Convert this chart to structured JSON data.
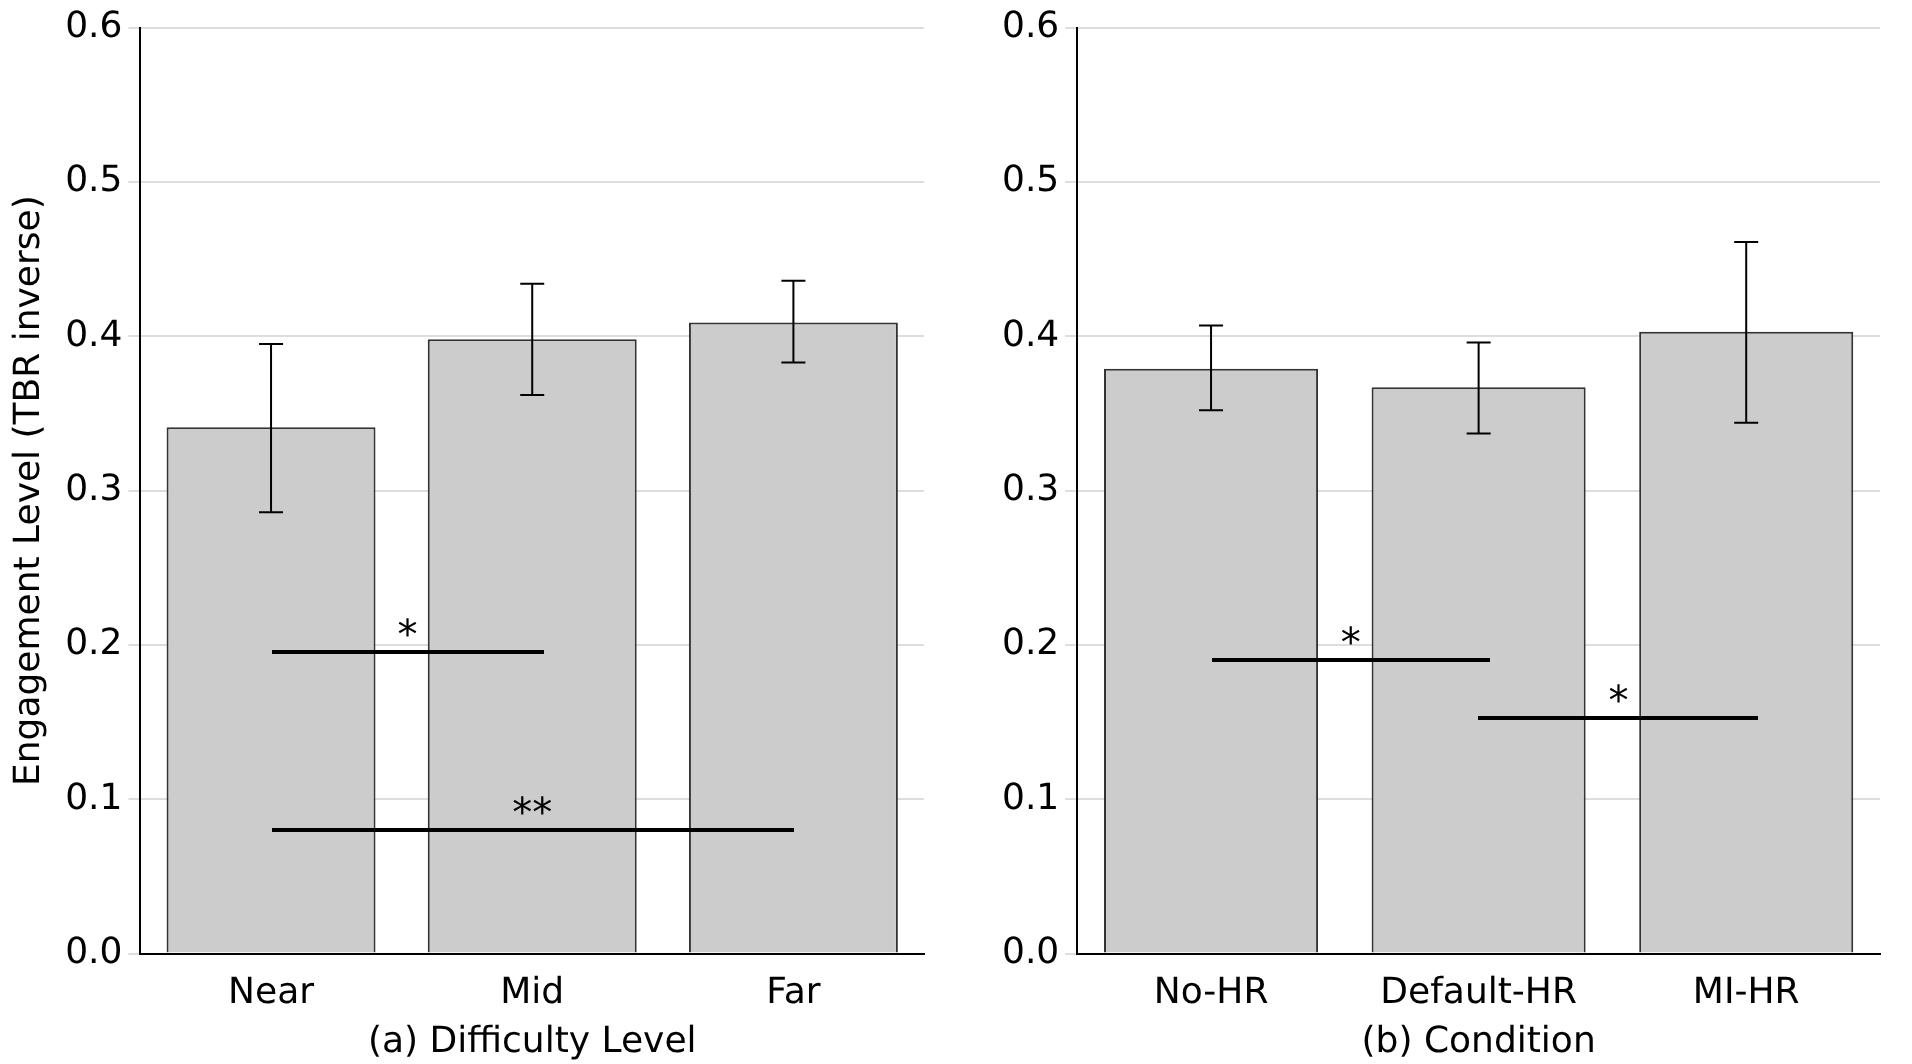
{
  "chart_data": [
    {
      "type": "bar",
      "xlabel": "(a) Difficulty Level",
      "ylabel": "Engagement Level (TBR inverse)",
      "categories": [
        "Near",
        "Mid",
        "Far"
      ],
      "values": [
        0.341,
        0.398,
        0.409
      ],
      "color": "#cccccc",
      "errors": [
        [
          0.286,
          0.395
        ],
        [
          0.362,
          0.434
        ],
        [
          0.383,
          0.436
        ]
      ],
      "ylim": [
        0,
        0.6
      ],
      "yticks": [
        {
          "value": 0,
          "label": "0.0"
        },
        0.1,
        0.2,
        0.3,
        0.4,
        0.5,
        0.6
      ],
      "grid": "y",
      "legend": false,
      "annotations": [
        "*",
        "**"
      ]
    },
    {
      "type": "bar",
      "xlabel": "(b) Condition",
      "categories": [
        "No-HR",
        "Default-HR",
        "MI-HR"
      ],
      "values": [
        0.379,
        0.367,
        0.403
      ],
      "color": "#cccccc",
      "errors": [
        [
          0.352,
          0.407
        ],
        [
          0.337,
          0.396
        ],
        [
          0.344,
          0.461
        ]
      ],
      "ylim": [
        0,
        0.6
      ],
      "yticks": [
        {
          "value": 0,
          "label": "0.0"
        },
        0.1,
        0.2,
        0.3,
        0.4,
        0.5,
        0.6
      ],
      "grid": "y",
      "legend": false,
      "annotations": [
        "*",
        "*"
      ]
    }
  ]
}
